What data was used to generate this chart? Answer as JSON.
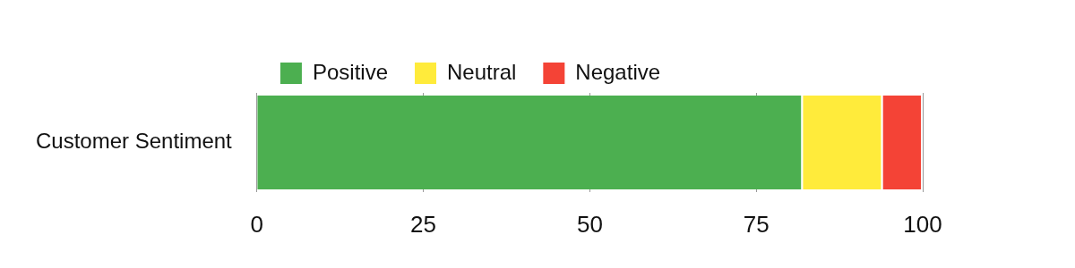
{
  "chart_data": {
    "type": "bar",
    "orientation": "horizontal",
    "stacked": true,
    "categories": [
      "Customer Sentiment"
    ],
    "series": [
      {
        "name": "Positive",
        "color": "#4caf50",
        "values": [
          82
        ]
      },
      {
        "name": "Neutral",
        "color": "#ffeb3b",
        "values": [
          12
        ]
      },
      {
        "name": "Negative",
        "color": "#f44336",
        "values": [
          6
        ]
      }
    ],
    "xlim": [
      0,
      100
    ],
    "xticks": [
      0,
      25,
      50,
      75,
      100
    ],
    "grid": "x",
    "legend": "top"
  }
}
